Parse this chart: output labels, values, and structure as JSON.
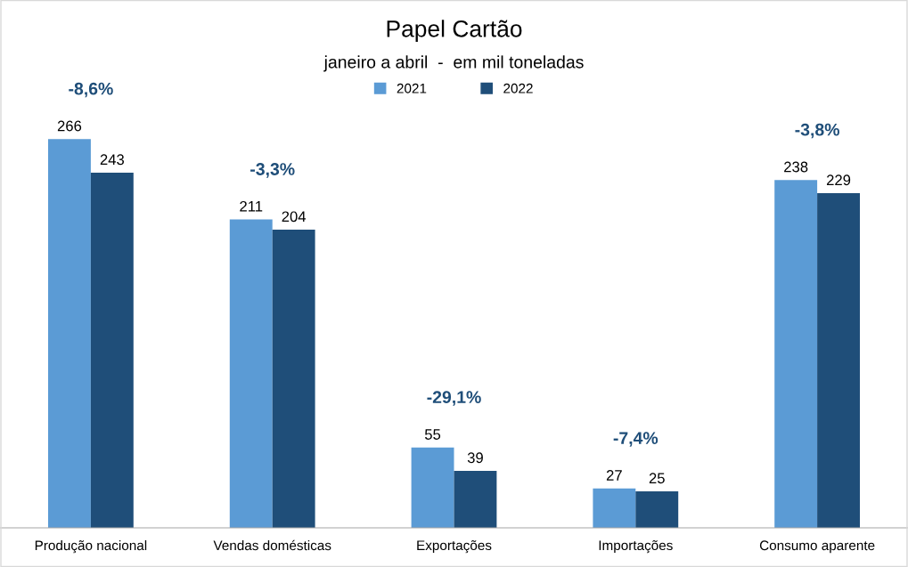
{
  "chart_data": {
    "type": "bar",
    "title": "Papel Cartão",
    "subtitle": "janeiro a abril  -  em mil toneladas",
    "categories": [
      "Produção nacional",
      "Vendas domésticas",
      "Exportações",
      "Importações",
      "Consumo aparente"
    ],
    "series": [
      {
        "name": "2021",
        "color": "#5b9bd5",
        "values": [
          266,
          211,
          55,
          27,
          238
        ]
      },
      {
        "name": "2022",
        "color": "#1f4e79",
        "values": [
          243,
          204,
          39,
          25,
          229
        ]
      }
    ],
    "annotations": [
      "-8,6%",
      "-3,3%",
      "-29,1%",
      "-7,4%",
      "-3,8%"
    ],
    "data_labels": true,
    "legend": "top",
    "grid": false
  }
}
